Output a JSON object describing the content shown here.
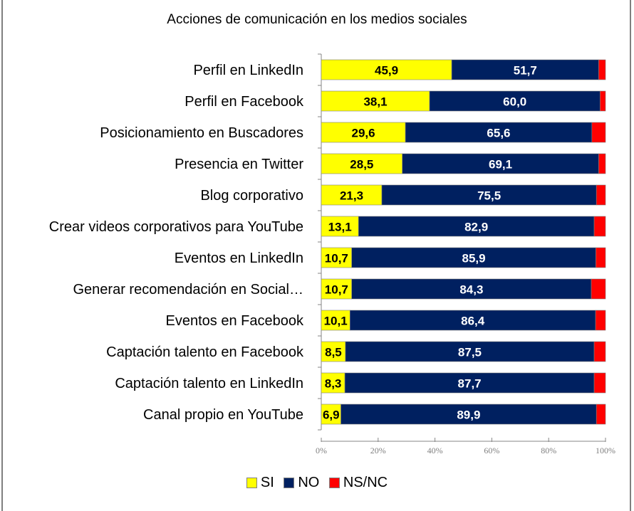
{
  "chart_data": {
    "type": "bar",
    "orientation": "horizontal",
    "stacked": "percent",
    "title": "Acciones de comunicación en los medios sociales",
    "xlabel": "",
    "ylabel": "",
    "xlim": [
      0,
      100
    ],
    "x_ticks": [
      "0%",
      "20%",
      "40%",
      "60%",
      "80%",
      "100%"
    ],
    "grid": false,
    "legend_position": "bottom",
    "categories": [
      "Perfil en LinkedIn",
      "Perfil en Facebook",
      "Posicionamiento en Buscadores",
      "Presencia en Twitter",
      "Blog corporativo",
      "Crear videos corporativos para YouTube",
      "Eventos en LinkedIn",
      "Generar recomendación en Social…",
      "Eventos en Facebook",
      "Captación talento en Facebook",
      "Captación talento en LinkedIn",
      "Canal propio en YouTube"
    ],
    "series": [
      {
        "name": "SI",
        "color": "#ffff00",
        "label_color": "#000000",
        "values": [
          45.9,
          38.1,
          29.6,
          28.5,
          21.3,
          13.1,
          10.7,
          10.7,
          10.1,
          8.5,
          8.3,
          6.9
        ],
        "labels": [
          "45,9",
          "38,1",
          "29,6",
          "28,5",
          "21,3",
          "13,1",
          "10,7",
          "10,7",
          "10,1",
          "8,5",
          "8,3",
          "6,9"
        ]
      },
      {
        "name": "NO",
        "color": "#002060",
        "label_color": "#ffffff",
        "values": [
          51.7,
          60.0,
          65.6,
          69.1,
          75.5,
          82.9,
          85.9,
          84.3,
          86.4,
          87.5,
          87.7,
          89.9
        ],
        "labels": [
          "51,7",
          "60,0",
          "65,6",
          "69,1",
          "75,5",
          "82,9",
          "85,9",
          "84,3",
          "86,4",
          "87,5",
          "87,7",
          "89,9"
        ]
      },
      {
        "name": "NS/NC",
        "color": "#ff0000",
        "label_color": null,
        "values": [
          2.4,
          1.9,
          4.8,
          2.4,
          3.2,
          4.0,
          3.4,
          5.0,
          3.5,
          4.0,
          4.0,
          3.2
        ],
        "labels": null
      }
    ]
  }
}
